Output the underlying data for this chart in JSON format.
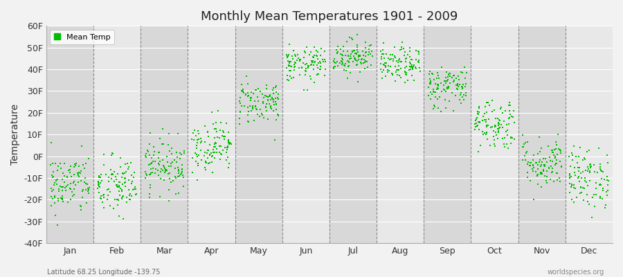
{
  "title": "Monthly Mean Temperatures 1901 - 2009",
  "ylabel": "Temperature",
  "subtitle": "Latitude 68.25 Longitude -139.75",
  "watermark": "worldspecies.org",
  "ylim": [
    -40,
    60
  ],
  "yticks": [
    -40,
    -30,
    -20,
    -10,
    0,
    10,
    20,
    30,
    40,
    50,
    60
  ],
  "ytick_labels": [
    "-40F",
    "-30F",
    "-20F",
    "-10F",
    "0F",
    "10F",
    "20F",
    "30F",
    "40F",
    "50F",
    "60F"
  ],
  "months": [
    "Jan",
    "Feb",
    "Mar",
    "Apr",
    "May",
    "Jun",
    "Jul",
    "Aug",
    "Sep",
    "Oct",
    "Nov",
    "Dec"
  ],
  "dot_color": "#00bb00",
  "dot_size": 4,
  "band_colors": [
    "#d8d8d8",
    "#e8e8e8"
  ],
  "bg_color": "#f2f2f2",
  "month_means": [
    -13,
    -14,
    -4,
    5,
    25,
    42,
    46,
    42,
    32,
    15,
    -3,
    -10
  ],
  "month_spreads": [
    7,
    7,
    6,
    6,
    5,
    4,
    4,
    4,
    5,
    6,
    6,
    7
  ],
  "n_years": 109,
  "random_seed": 42
}
